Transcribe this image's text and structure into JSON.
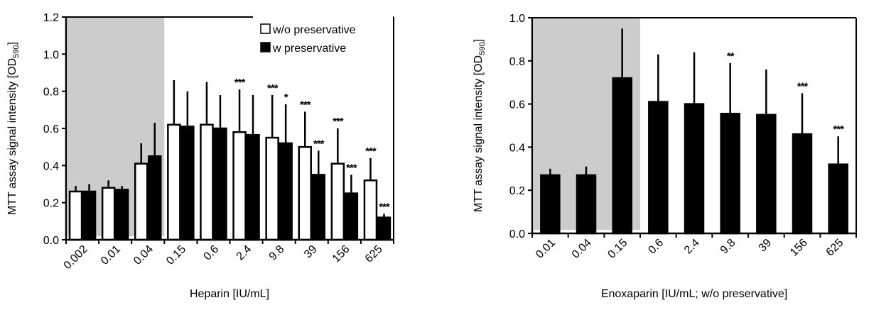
{
  "chart_data": [
    {
      "type": "bar",
      "title": "",
      "xlabel": "Heparin [IU/mL]",
      "ylabel": "MTT assay signal intensity [OD590]",
      "ylabel_main": "MTT assay signal intensity [OD",
      "ylabel_sub": "590",
      "ylabel_close": "]",
      "ylim": [
        0,
        1.2
      ],
      "yticks": [
        "0.0",
        "0.2",
        "0.4",
        "0.6",
        "0.8",
        "1.0",
        "1.2"
      ],
      "ytick_values": [
        0,
        0.2,
        0.4,
        0.6,
        0.8,
        1.0,
        1.2
      ],
      "categories": [
        "0.002",
        "0.01",
        "0.04",
        "0.15",
        "0.6",
        "2.4",
        "9.8",
        "39",
        "156",
        "625"
      ],
      "shaded_categories": [
        "0.002",
        "0.01",
        "0.04"
      ],
      "shade_color": "#cccccc",
      "legend_position": "top-right",
      "series": [
        {
          "name": "w/o preservative",
          "fill": "#ffffff",
          "values": [
            0.26,
            0.28,
            0.41,
            0.62,
            0.62,
            0.58,
            0.55,
            0.5,
            0.41,
            0.32
          ],
          "error_upper": [
            0.29,
            0.32,
            0.52,
            0.86,
            0.85,
            0.81,
            0.78,
            0.69,
            0.6,
            0.44
          ],
          "significance": [
            "",
            "",
            "",
            "",
            "",
            "***",
            "***",
            "***",
            "***",
            "***"
          ]
        },
        {
          "name": "w preservative",
          "fill": "#000000",
          "values": [
            0.26,
            0.27,
            0.45,
            0.61,
            0.6,
            0.565,
            0.52,
            0.35,
            0.25,
            0.12
          ],
          "error_upper": [
            0.3,
            0.29,
            0.63,
            0.8,
            0.78,
            0.78,
            0.73,
            0.48,
            0.35,
            0.14
          ],
          "significance": [
            "",
            "",
            "",
            "",
            "",
            "",
            "*",
            "***",
            "***",
            "***"
          ]
        }
      ]
    },
    {
      "type": "bar",
      "title": "",
      "xlabel": "Enoxaparin [IU/mL; w/o preservative]",
      "ylabel": "MTT assay signal intensity [OD590]",
      "ylabel_main": "MTT assay signal intensity [OD",
      "ylabel_sub": "590",
      "ylabel_close": "]",
      "ylim": [
        0,
        1.0
      ],
      "yticks": [
        "0.0",
        "0.2",
        "0.4",
        "0.6",
        "0.8",
        "1.0"
      ],
      "ytick_values": [
        0,
        0.2,
        0.4,
        0.6,
        0.8,
        1.0
      ],
      "categories": [
        "0.01",
        "0.04",
        "0.15",
        "0.6",
        "2.4",
        "9.8",
        "39",
        "156",
        "625"
      ],
      "shaded_categories": [
        "0.01",
        "0.04",
        "0.15"
      ],
      "shade_color": "#cccccc",
      "series": [
        {
          "name": "Enoxaparin",
          "fill": "#000000",
          "values": [
            0.27,
            0.27,
            0.72,
            0.61,
            0.6,
            0.555,
            0.55,
            0.46,
            0.32
          ],
          "error_upper": [
            0.3,
            0.31,
            0.95,
            0.83,
            0.84,
            0.79,
            0.76,
            0.65,
            0.45
          ],
          "significance": [
            "",
            "",
            "",
            "",
            "",
            "**",
            "",
            "***",
            "***"
          ]
        }
      ]
    }
  ]
}
